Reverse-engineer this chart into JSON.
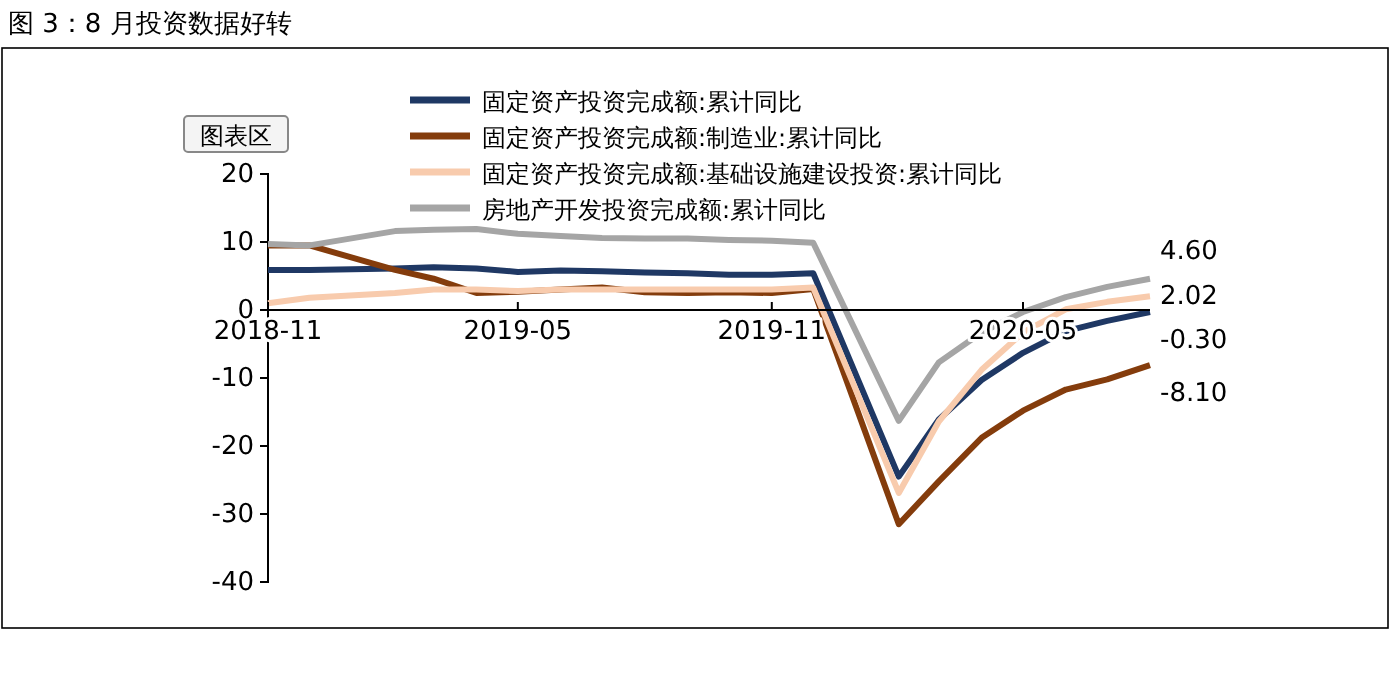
{
  "chart_data": {
    "type": "line",
    "title": "图 3：8 月投资数据好转",
    "annotations": [
      "图表区"
    ],
    "x": [
      "2018-11",
      "2018-12",
      "2019-02",
      "2019-03",
      "2019-04",
      "2019-05",
      "2019-06",
      "2019-07",
      "2019-08",
      "2019-09",
      "2019-10",
      "2019-11",
      "2019-12",
      "2020-02",
      "2020-03",
      "2020-04",
      "2020-05",
      "2020-06",
      "2020-07",
      "2020-08"
    ],
    "xlim": [
      "2018-11",
      "2020-08"
    ],
    "xticks": [
      "2018-11",
      "2019-05",
      "2019-11",
      "2020-05"
    ],
    "ylim": [
      -40,
      20
    ],
    "yticks": [
      -40,
      -30,
      -20,
      -10,
      0,
      10,
      20
    ],
    "grid": false,
    "legend": "top",
    "marker": "none",
    "line_style": "solid",
    "series": [
      {
        "name": "固定资产投资完成额:累计同比",
        "color": "#1f3864",
        "values": [
          5.9,
          5.9,
          6.1,
          6.3,
          6.1,
          5.6,
          5.8,
          5.7,
          5.5,
          5.4,
          5.2,
          5.2,
          5.4,
          -24.5,
          -16.1,
          -10.3,
          -6.3,
          -3.1,
          -1.6,
          -0.3
        ],
        "value_labels": [
          null,
          null,
          null,
          null,
          null,
          null,
          null,
          null,
          null,
          null,
          null,
          null,
          null,
          null,
          null,
          null,
          null,
          null,
          null,
          "-0.30"
        ]
      },
      {
        "name": "固定资产投资完成额:制造业:累计同比",
        "color": "#843c0c",
        "values": [
          9.5,
          9.5,
          5.9,
          4.6,
          2.5,
          2.7,
          3.0,
          3.3,
          2.6,
          2.5,
          2.6,
          2.5,
          3.1,
          -31.5,
          -25.2,
          -18.8,
          -14.8,
          -11.7,
          -10.2,
          -8.1
        ],
        "value_labels": [
          null,
          null,
          null,
          null,
          null,
          null,
          null,
          null,
          null,
          null,
          null,
          null,
          null,
          null,
          null,
          null,
          null,
          null,
          null,
          "-8.10"
        ]
      },
      {
        "name": "固定资产投资完成额:基础设施建设投资:累计同比",
        "color": "#f8cbad",
        "values": [
          1.0,
          1.8,
          2.5,
          3.0,
          3.0,
          2.8,
          3.0,
          3.0,
          3.0,
          3.0,
          3.0,
          3.0,
          3.3,
          -26.9,
          -16.4,
          -8.8,
          -3.3,
          0.1,
          1.2,
          2.02
        ],
        "value_labels": [
          null,
          null,
          null,
          null,
          null,
          null,
          null,
          null,
          null,
          null,
          null,
          null,
          null,
          null,
          null,
          null,
          null,
          null,
          null,
          "2.02"
        ]
      },
      {
        "name": "房地产开发投资完成额:累计同比",
        "color": "#a5a5a5",
        "values": [
          9.7,
          9.5,
          11.6,
          11.8,
          11.9,
          11.2,
          10.9,
          10.6,
          10.5,
          10.5,
          10.3,
          10.2,
          9.9,
          -16.3,
          -7.7,
          -3.3,
          -0.3,
          1.9,
          3.4,
          4.6
        ],
        "value_labels": [
          null,
          null,
          null,
          null,
          null,
          null,
          null,
          null,
          null,
          null,
          null,
          null,
          null,
          null,
          null,
          null,
          null,
          null,
          null,
          "4.60"
        ]
      }
    ]
  }
}
